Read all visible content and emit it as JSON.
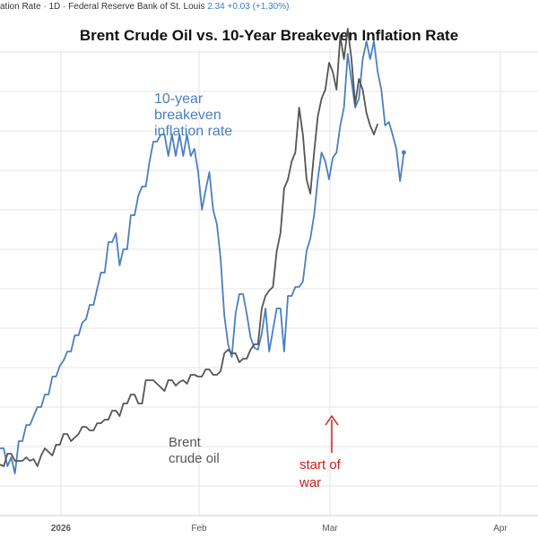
{
  "header": {
    "text": "ation Rate · 1D · Federal Reserve Bank of St. Louis",
    "value": "2.34",
    "change": "+0.03 (+1.30%)"
  },
  "colors": {
    "breakeven": "#4a7fc1",
    "brent": "#555555",
    "war": "#cc1f1f",
    "grid": "#e6e6e6"
  },
  "chart_data": {
    "type": "line",
    "title": "Brent Crude Oil vs. 10-Year Breakeven Inflation Rate",
    "x_ticks": [
      "2026",
      "Feb",
      "Mar",
      "Apr"
    ],
    "grid": true,
    "series": [
      {
        "name": "10-year breakeven inflation rate",
        "label_lines": [
          "10-year",
          "breakeven",
          "inflation rate"
        ],
        "values": [
          0.1,
          0.1,
          0.0,
          0.05,
          -0.04,
          0.14,
          0.14,
          0.23,
          0.23,
          0.28,
          0.33,
          0.33,
          0.4,
          0.4,
          0.5,
          0.5,
          0.56,
          0.59,
          0.64,
          0.64,
          0.73,
          0.73,
          0.8,
          0.82,
          0.9,
          0.9,
          0.99,
          1.08,
          1.08,
          1.25,
          1.25,
          1.3,
          1.12,
          1.21,
          1.21,
          1.4,
          1.4,
          1.51,
          1.56,
          1.56,
          1.7,
          1.81,
          1.81,
          1.85,
          1.85,
          1.73,
          1.85,
          1.73,
          1.85,
          1.73,
          1.85,
          1.73,
          1.77,
          1.64,
          1.43,
          1.54,
          1.64,
          1.43,
          1.35,
          1.16,
          0.84,
          0.68,
          0.61,
          0.85,
          0.96,
          0.96,
          0.85,
          0.72,
          0.66,
          0.65,
          0.74,
          0.88,
          0.64,
          0.76,
          0.88,
          0.88,
          0.64,
          0.95,
          0.95,
          1.0,
          1.0,
          1.03,
          1.2,
          1.27,
          1.4,
          1.6,
          1.75,
          1.7,
          1.6,
          1.72,
          1.75,
          1.9,
          2.0,
          2.3,
          2.15,
          2.0,
          2.05,
          2.27,
          2.37,
          2.27,
          2.37,
          2.2,
          2.1,
          1.9,
          1.92,
          1.85,
          1.77,
          1.59,
          1.75
        ]
      },
      {
        "name": "Brent crude oil",
        "label_lines": [
          "Brent",
          "crude oil"
        ],
        "values": [
          0.01,
          0.0,
          0.07,
          0.07,
          0.03,
          0.03,
          0.03,
          0.05,
          0.03,
          0.04,
          0.0,
          0.06,
          0.1,
          0.08,
          0.06,
          0.12,
          0.12,
          0.18,
          0.18,
          0.14,
          0.16,
          0.18,
          0.22,
          0.22,
          0.2,
          0.2,
          0.24,
          0.24,
          0.26,
          0.26,
          0.31,
          0.31,
          0.28,
          0.35,
          0.35,
          0.4,
          0.4,
          0.35,
          0.35,
          0.48,
          0.48,
          0.48,
          0.46,
          0.44,
          0.42,
          0.48,
          0.48,
          0.45,
          0.47,
          0.48,
          0.46,
          0.51,
          0.51,
          0.5,
          0.5,
          0.54,
          0.54,
          0.51,
          0.51,
          0.53,
          0.63,
          0.65,
          0.63,
          0.63,
          0.58,
          0.6,
          0.6,
          0.65,
          0.68,
          0.68,
          0.88,
          0.95,
          0.98,
          1.0,
          1.2,
          1.3,
          1.55,
          1.6,
          1.7,
          1.75,
          2.0,
          1.85,
          1.6,
          1.52,
          1.75,
          1.95,
          2.05,
          2.1,
          2.25,
          2.2,
          2.1,
          2.4,
          2.27,
          2.44,
          2.27,
          2.02,
          2.16,
          2.1,
          1.97,
          1.9,
          1.85,
          1.91
        ]
      }
    ],
    "annotations": [
      {
        "text_lines": [
          "start of",
          "war"
        ],
        "color": "#cc1f1f"
      }
    ]
  }
}
